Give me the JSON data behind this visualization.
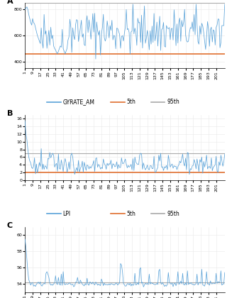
{
  "panel_A_label": "A",
  "panel_B_label": "B",
  "panel_C_label": "C",
  "n_points": 210,
  "x_ticks": [
    1,
    9,
    17,
    25,
    33,
    41,
    49,
    57,
    65,
    73,
    81,
    89,
    97,
    105,
    113,
    121,
    129,
    137,
    145,
    153,
    161,
    169,
    177,
    185,
    193,
    201
  ],
  "panel_A": {
    "ylim": [
      350,
      850
    ],
    "yticks": [
      400,
      600,
      800
    ],
    "legend": [
      "GYRATE_AM",
      "5th",
      "95th"
    ],
    "line_color": "#5ba3d9",
    "hline_5th": 460,
    "hline_5th_color": "#e07030",
    "hline_95th": 850,
    "hline_95th_color": "#aaaaaa"
  },
  "panel_B": {
    "ylim": [
      0,
      17
    ],
    "yticks": [
      0,
      2,
      4,
      6,
      8,
      10,
      12,
      14,
      16
    ],
    "legend": [
      "LPI",
      "5th",
      "95th"
    ],
    "line_color": "#5ba3d9",
    "hline_5th": 2.0,
    "hline_5th_color": "#e07030",
    "hline_95th": 7.0,
    "hline_95th_color": "#aaaaaa"
  },
  "panel_C": {
    "ylim": [
      53,
      61
    ],
    "yticks": [
      54,
      56,
      58,
      60
    ],
    "line_color": "#5ba3d9",
    "hline_95th": 54.2,
    "hline_95th_color": "#aaaaaa"
  },
  "bg_color": "#ffffff",
  "grid_color": "#e8e8e8",
  "tick_label_size": 4.5,
  "legend_fontsize": 5.5
}
